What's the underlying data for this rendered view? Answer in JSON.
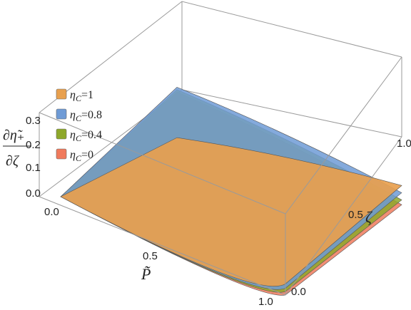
{
  "chart_data": {
    "type": "surface3d",
    "axes": {
      "x": {
        "label": "P̃",
        "ticks": [
          "0.0",
          "0.5",
          "1.0"
        ],
        "range": [
          0,
          1
        ]
      },
      "y": {
        "label": "ζ",
        "ticks": [
          "0.0",
          "0.5",
          "1.0"
        ],
        "range": [
          0,
          1
        ]
      },
      "z": {
        "label_num": "∂η̃₊",
        "label_den": "∂ζ",
        "ticks": [
          "0.0",
          "0.1",
          "0.2",
          "0.3"
        ],
        "range": [
          0,
          0.35
        ]
      }
    },
    "legend": {
      "placement": "left"
    },
    "series": [
      {
        "name": "η_C=1",
        "name_main": "η",
        "name_sub": "C",
        "name_rest": "=1",
        "color": "#e8a04e",
        "corner_values": {
          "P0_z0": 0.0,
          "P0_z1": 0.05,
          "P1_z0": 0.0,
          "P1_z1": 0.26
        }
      },
      {
        "name": "η_C=0.8",
        "name_main": "η",
        "name_sub": "C",
        "name_rest": "=0.8",
        "color": "#6f9bd6",
        "corner_values": {
          "P0_z0": 0.0,
          "P0_z1": 0.26,
          "P1_z0": 0.0,
          "P1_z1": 0.23
        }
      },
      {
        "name": "η_C=0.4",
        "name_main": "η",
        "name_sub": "C",
        "name_rest": "=0.4",
        "color": "#8ea82a",
        "corner_values": {
          "P0_z0": 0.0,
          "P0_z1": 0.25,
          "P1_z0": 0.0,
          "P1_z1": 0.2
        }
      },
      {
        "name": "η_C=0",
        "name_main": "η",
        "name_sub": "C",
        "name_rest": "=0",
        "color": "#f07a5c",
        "corner_values": {
          "P0_z0": 0.0,
          "P0_z1": 0.24,
          "P1_z0": 0.0,
          "P1_z1": 0.18
        }
      }
    ]
  }
}
